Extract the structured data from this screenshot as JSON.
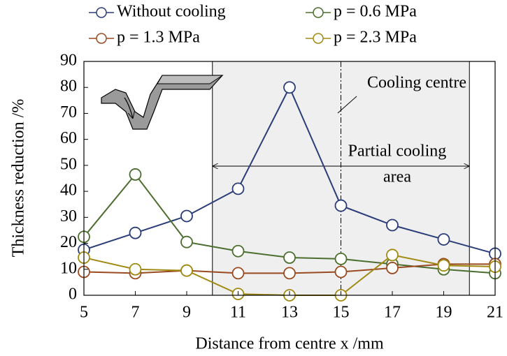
{
  "chart_data": {
    "type": "line",
    "x_label": "Distance from centre x /mm",
    "y_label": "Thickness reduction /%",
    "x": [
      5,
      7,
      9,
      11,
      13,
      15,
      17,
      19,
      21
    ],
    "xlim": [
      5,
      21
    ],
    "xticks": [
      5,
      7,
      9,
      11,
      13,
      15,
      17,
      19,
      21
    ],
    "ylim": [
      0,
      90
    ],
    "yticks": [
      0,
      10,
      20,
      30,
      40,
      50,
      60,
      70,
      80,
      90
    ],
    "shaded_region": [
      10,
      20
    ],
    "cooling_centre_x": 15,
    "annotations": [
      "Cooling centre",
      "Partial cooling",
      "area"
    ],
    "series": [
      {
        "name": "Without cooling",
        "color": "#2b3d78",
        "values": [
          17.5,
          24,
          30.5,
          41,
          80,
          34.5,
          27,
          21.5,
          16
        ]
      },
      {
        "name": "p = 0.6 MPa",
        "color": "#4b6e2e",
        "values": [
          22.5,
          46.5,
          20.5,
          17,
          14.5,
          14,
          12,
          10,
          8.5
        ]
      },
      {
        "name": "p = 1.3 MPa",
        "color": "#9a4a1f",
        "values": [
          9,
          8.5,
          9.5,
          8.5,
          8.5,
          9,
          10.5,
          12,
          12
        ]
      },
      {
        "name": "p = 2.3 MPa",
        "color": "#a08a12",
        "values": [
          14.5,
          10,
          9.5,
          0.5,
          0,
          0,
          15.5,
          11.5,
          11
        ]
      }
    ]
  }
}
